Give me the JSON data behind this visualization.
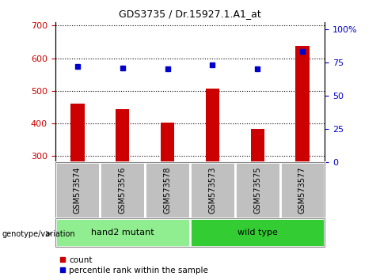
{
  "title": "GDS3735 / Dr.15927.1.A1_at",
  "samples": [
    "GSM573574",
    "GSM573576",
    "GSM573578",
    "GSM573573",
    "GSM573575",
    "GSM573577"
  ],
  "counts": [
    460,
    444,
    402,
    507,
    382,
    638
  ],
  "percentiles": [
    72.0,
    71.0,
    70.0,
    73.0,
    70.0,
    83.0
  ],
  "groups": [
    {
      "label": "hand2 mutant",
      "indices": [
        0,
        1,
        2
      ],
      "color": "#90EE90"
    },
    {
      "label": "wild type",
      "indices": [
        3,
        4,
        5
      ],
      "color": "#33CC33"
    }
  ],
  "ylim_left": [
    280,
    710
  ],
  "ylim_right": [
    0,
    105
  ],
  "yticks_left": [
    300,
    400,
    500,
    600,
    700
  ],
  "yticks_right": [
    0,
    25,
    50,
    75,
    100
  ],
  "ytick_labels_right": [
    "0",
    "25",
    "50",
    "75",
    "100%"
  ],
  "bar_color": "#CC0000",
  "dot_color": "#0000CC",
  "bar_width": 0.3,
  "sample_box_color": "#C0C0C0",
  "group_border_color": "#666666"
}
